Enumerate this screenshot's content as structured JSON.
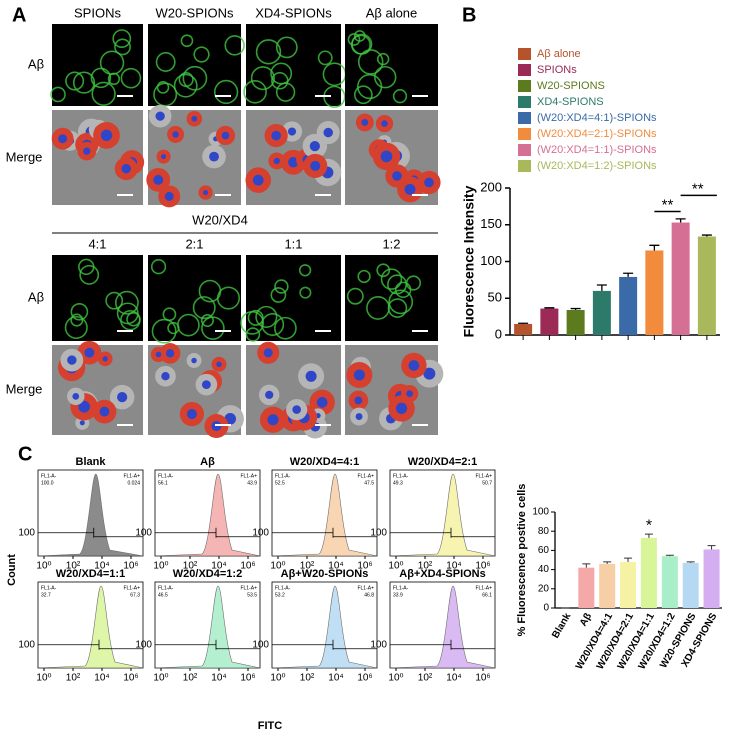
{
  "panel_a": {
    "letter": "A",
    "columns": [
      "SPIONs",
      "W20-SPIONs",
      "XD4-SPIONs",
      "Aβ alone"
    ],
    "rows": [
      "Aβ",
      "Merge"
    ],
    "group_title": "W20/XD4",
    "ratios": [
      "4:1",
      "2:1",
      "1:1",
      "1:2"
    ],
    "rows2": [
      "Aβ",
      "Merge"
    ]
  },
  "panel_b": {
    "letter": "B"
  },
  "panel_c": {
    "letter": "C",
    "x_label": "FITC",
    "y_label": "Count",
    "y_tick": "100",
    "x_ticks": [
      {
        "value": 0,
        "label": "10⁰"
      },
      {
        "value": 2,
        "label": "10²"
      },
      {
        "value": 4,
        "label": "10⁴"
      },
      {
        "value": 6,
        "label": "10⁶"
      }
    ],
    "gate_label": "FL1-A-",
    "gate_label_right": "FL1-A+",
    "plots": [
      {
        "title": "Blank",
        "left": "100.0",
        "right": "0.024",
        "color": "#777777"
      },
      {
        "title": "Aβ",
        "left": "56.1",
        "right": "43.9",
        "color": "#f4a9a8"
      },
      {
        "title": "W20/XD4=4:1",
        "left": "52.5",
        "right": "47.5",
        "color": "#f7cfa6"
      },
      {
        "title": "W20/XD4=2:1",
        "left": "49.3",
        "right": "50.7",
        "color": "#f6f2a4"
      },
      {
        "title": "W20/XD4=1:1",
        "left": "32.7",
        "right": "67.3",
        "color": "#d8f59a"
      },
      {
        "title": "W20/XD4=1:2",
        "left": "46.5",
        "right": "53.5",
        "color": "#a8eec8"
      },
      {
        "title": "Aβ+W20-SPIONs",
        "left": "53.2",
        "right": "46.8",
        "color": "#b6d9f3"
      },
      {
        "title": "Aβ+XD4-SPIONs",
        "left": "33.9",
        "right": "66.1",
        "color": "#d4aef0"
      }
    ]
  },
  "chart_data": [
    {
      "type": "bar",
      "y_label": "Fluorescence Intensity",
      "series": [
        {
          "name": "Aβ alone",
          "color": "#b5532d",
          "values": [
            15
          ],
          "errors": [
            1
          ]
        },
        {
          "name": "SPIONs",
          "color": "#9c2a57",
          "values": [
            36
          ],
          "errors": [
            1
          ]
        },
        {
          "name": "W20-SPIONS",
          "color": "#5c7a1e",
          "values": [
            34
          ],
          "errors": [
            2
          ]
        },
        {
          "name": "XD4-SPIONS",
          "color": "#2c7a6a",
          "values": [
            60
          ],
          "errors": [
            8
          ]
        },
        {
          "name": "(W20:XD4=4:1)-SPIONs",
          "color": "#3b6aa8",
          "values": [
            79
          ],
          "errors": [
            5
          ]
        },
        {
          "name": "(W20:XD4=2:1)-SPIONs",
          "color": "#f28b3c",
          "values": [
            115
          ],
          "errors": [
            7
          ]
        },
        {
          "name": "(W20:XD4=1:1)-SPIONs",
          "color": "#d66f94",
          "values": [
            153
          ],
          "errors": [
            5
          ]
        },
        {
          "name": "(W20:XD4=1:2)-SPIONs",
          "color": "#a8b85a",
          "values": [
            134
          ],
          "errors": [
            2
          ]
        }
      ],
      "ylim": [
        0,
        200
      ],
      "yticks": [
        0,
        50,
        100,
        150,
        200
      ],
      "annotations": [
        "**",
        "**"
      ]
    },
    {
      "type": "bar",
      "y_label": "% Fluorescence postive cells",
      "categories": [
        "Blank",
        "Aβ",
        "W20/XD4=4:1",
        "W20/XD4=2:1",
        "W20/XD4=1:1",
        "W20/XD4=1:2",
        "W20-SPIONS",
        "XD4-SPIONS"
      ],
      "values": [
        0,
        42,
        46,
        48,
        73,
        54,
        47,
        61
      ],
      "errors": [
        0,
        4,
        2,
        4,
        4,
        1,
        1,
        4
      ],
      "colors": [
        "#ffffff",
        "#f4a9a8",
        "#f7cfa6",
        "#f6f2a4",
        "#d8f59a",
        "#a8eec8",
        "#b6d9f3",
        "#d4aef0"
      ],
      "ylim": [
        0,
        100
      ],
      "yticks": [
        0,
        20,
        40,
        60,
        80,
        100
      ],
      "annotations": [
        "*"
      ]
    }
  ]
}
